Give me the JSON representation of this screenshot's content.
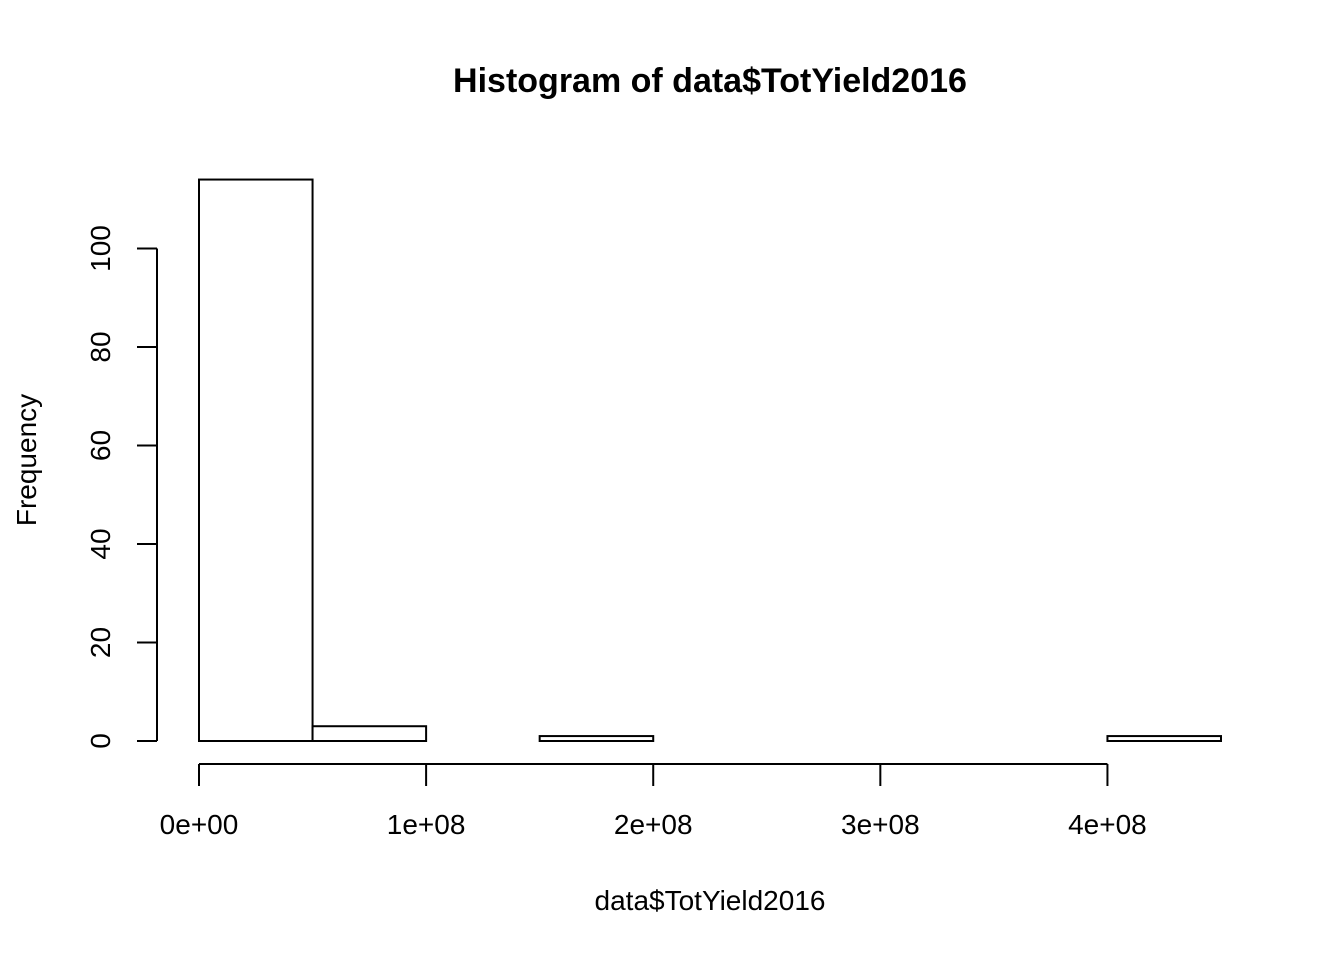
{
  "chart_data": {
    "type": "bar",
    "title": "Histogram of data$TotYield2016",
    "xlabel": "data$TotYield2016",
    "ylabel": "Frequency",
    "bins": [
      {
        "start": 0,
        "end": 50000000,
        "count": 114
      },
      {
        "start": 50000000,
        "end": 100000000,
        "count": 3
      },
      {
        "start": 100000000,
        "end": 150000000,
        "count": 0
      },
      {
        "start": 150000000,
        "end": 200000000,
        "count": 1
      },
      {
        "start": 200000000,
        "end": 250000000,
        "count": 0
      },
      {
        "start": 250000000,
        "end": 300000000,
        "count": 0
      },
      {
        "start": 300000000,
        "end": 350000000,
        "count": 0
      },
      {
        "start": 350000000,
        "end": 400000000,
        "count": 0
      },
      {
        "start": 400000000,
        "end": 450000000,
        "count": 1
      }
    ],
    "xticks": [
      {
        "value": 0,
        "label": "0e+00"
      },
      {
        "value": 100000000,
        "label": "1e+08"
      },
      {
        "value": 200000000,
        "label": "2e+08"
      },
      {
        "value": 300000000,
        "label": "3e+08"
      },
      {
        "value": 400000000,
        "label": "4e+08"
      }
    ],
    "yticks": [
      {
        "value": 0,
        "label": "0"
      },
      {
        "value": 20,
        "label": "20"
      },
      {
        "value": 40,
        "label": "40"
      },
      {
        "value": 60,
        "label": "60"
      },
      {
        "value": 80,
        "label": "80"
      },
      {
        "value": 100,
        "label": "100"
      }
    ],
    "xlim": [
      0,
      450000000
    ],
    "ylim": [
      0,
      114
    ],
    "grid": false,
    "colors": {
      "bar_fill": "#ffffff",
      "bar_stroke": "#000000"
    }
  }
}
